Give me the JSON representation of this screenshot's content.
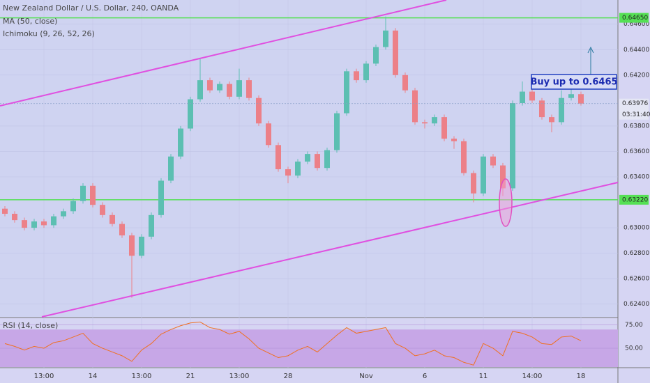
{
  "chart_data": {
    "type": "candlestick",
    "title": "New Zealand Dollar / U.S. Dollar, 240, OANDA",
    "indicators": [
      "MA (50, close)",
      "Ichimoku (9, 26, 52, 26)"
    ],
    "categories": [
      null,
      null,
      null,
      null,
      "13:00",
      null,
      null,
      null,
      null,
      "14",
      null,
      null,
      null,
      null,
      "13:00",
      null,
      null,
      null,
      null,
      "21",
      null,
      null,
      null,
      null,
      "13:00",
      null,
      null,
      null,
      null,
      "28",
      null,
      null,
      null,
      null,
      null,
      null,
      null,
      "Nov",
      null,
      null,
      null,
      null,
      null,
      "6",
      null,
      null,
      null,
      null,
      null,
      "11",
      null,
      null,
      null,
      null,
      "14:00",
      null,
      null,
      null,
      null,
      "18"
    ],
    "open": [
      0.6315,
      0.6311,
      0.6306,
      0.63,
      0.6305,
      0.6302,
      0.6309,
      0.6313,
      0.6321,
      0.6333,
      0.6318,
      0.631,
      0.6303,
      0.6294,
      0.6278,
      0.6293,
      0.631,
      0.6337,
      0.6356,
      0.6378,
      0.6401,
      0.6416,
      0.6408,
      0.6413,
      0.6403,
      0.6416,
      0.6402,
      0.6382,
      0.6365,
      0.6346,
      0.6341,
      0.6352,
      0.6358,
      0.6347,
      0.6361,
      0.639,
      0.6423,
      0.6416,
      0.6429,
      0.6442,
      0.6455,
      0.642,
      0.6408,
      0.6383,
      0.6382,
      0.6387,
      0.637,
      0.6368,
      0.6343,
      0.6327,
      0.6356,
      0.6349,
      0.6331,
      0.6398,
      0.6407,
      0.64,
      0.6387,
      0.6383,
      0.6402,
      0.6405
    ],
    "high": [
      0.6317,
      0.6313,
      0.6308,
      0.6307,
      0.6307,
      0.6311,
      0.6315,
      0.6323,
      0.6335,
      0.6335,
      0.632,
      0.6312,
      0.6305,
      0.6296,
      0.6295,
      0.6312,
      0.6339,
      0.6358,
      0.638,
      0.6403,
      0.6433,
      0.6418,
      0.6415,
      0.6415,
      0.6425,
      0.6418,
      0.6404,
      0.6384,
      0.6367,
      0.6348,
      0.6354,
      0.636,
      0.636,
      0.6363,
      0.6392,
      0.6425,
      0.6425,
      0.6431,
      0.6444,
      0.6466,
      0.6457,
      0.6422,
      0.641,
      0.6385,
      0.6389,
      0.6389,
      0.6372,
      0.637,
      0.6345,
      0.6358,
      0.6358,
      0.6351,
      0.64,
      0.6415,
      0.6409,
      0.6402,
      0.6389,
      0.6408,
      0.641,
      0.6407
    ],
    "low": [
      0.6309,
      0.6304,
      0.6298,
      0.6298,
      0.63,
      0.63,
      0.6307,
      0.6311,
      0.6319,
      0.6316,
      0.6308,
      0.6301,
      0.6292,
      0.6245,
      0.6276,
      0.6291,
      0.6308,
      0.6335,
      0.6354,
      0.6376,
      0.6399,
      0.6406,
      0.6406,
      0.6401,
      0.6401,
      0.64,
      0.638,
      0.6363,
      0.6344,
      0.6335,
      0.6339,
      0.635,
      0.6345,
      0.6345,
      0.6359,
      0.6388,
      0.6414,
      0.6414,
      0.6427,
      0.644,
      0.6418,
      0.6406,
      0.6381,
      0.6378,
      0.638,
      0.6368,
      0.6362,
      0.6341,
      0.632,
      0.6325,
      0.6347,
      0.6325,
      0.6329,
      0.6396,
      0.6398,
      0.6385,
      0.6375,
      0.6381,
      0.64,
      0.6396
    ],
    "close": [
      0.6311,
      0.6306,
      0.63,
      0.6305,
      0.6302,
      0.6309,
      0.6313,
      0.6321,
      0.6333,
      0.6318,
      0.631,
      0.6303,
      0.6294,
      0.6278,
      0.6293,
      0.631,
      0.6337,
      0.6356,
      0.6378,
      0.6401,
      0.6416,
      0.6408,
      0.6413,
      0.6403,
      0.6416,
      0.6402,
      0.6382,
      0.6365,
      0.6346,
      0.6341,
      0.6352,
      0.6358,
      0.6347,
      0.6361,
      0.639,
      0.6423,
      0.6416,
      0.6429,
      0.6442,
      0.6455,
      0.642,
      0.6408,
      0.6383,
      0.6382,
      0.6387,
      0.637,
      0.6368,
      0.6343,
      0.6327,
      0.6356,
      0.6349,
      0.6331,
      0.6398,
      0.6407,
      0.64,
      0.6387,
      0.6383,
      0.6402,
      0.6405,
      0.63976
    ],
    "up_color": "#5cbfb2",
    "down_color": "#ec8088",
    "ylim": [
      0.623,
      0.6479
    ],
    "yticks": [
      {
        "value": 0.624,
        "label": "0.62400"
      },
      {
        "value": 0.626,
        "label": "0.62600"
      },
      {
        "value": 0.628,
        "label": "0.62800"
      },
      {
        "value": 0.63,
        "label": "0.63000"
      },
      {
        "value": 0.634,
        "label": "0.63400"
      },
      {
        "value": 0.636,
        "label": "0.63600"
      },
      {
        "value": 0.638,
        "label": "0.63800"
      },
      {
        "value": 0.642,
        "label": "0.64200"
      },
      {
        "value": 0.644,
        "label": "0.64400"
      },
      {
        "value": 0.646,
        "label": "0.64600"
      }
    ],
    "grid": true,
    "levels": [
      {
        "value": 0.6465,
        "label": "0.64650",
        "color": "#55e055"
      },
      {
        "value": 0.6322,
        "label": "0.63220",
        "color": "#55e055"
      }
    ],
    "last_price": {
      "value": 0.63976,
      "label": "0.63976",
      "countdown": "03:31:40"
    },
    "annotation": "Buy up to 0.6465",
    "rsi": {
      "name": "RSI (14, close)",
      "color": "#f07020",
      "values": [
        55,
        52,
        48,
        52,
        50,
        56,
        58,
        62,
        66,
        55,
        50,
        46,
        42,
        36,
        48,
        55,
        65,
        70,
        74,
        77,
        78,
        72,
        70,
        65,
        68,
        60,
        50,
        45,
        40,
        42,
        48,
        52,
        46,
        55,
        64,
        72,
        66,
        68,
        70,
        72,
        55,
        50,
        42,
        44,
        48,
        42,
        40,
        35,
        32,
        55,
        50,
        42,
        68,
        66,
        62,
        55,
        54,
        62,
        63,
        58
      ],
      "ylim": [
        30,
        82
      ],
      "yticks": [
        {
          "value": 75,
          "label": "75.00"
        },
        {
          "value": 50,
          "label": "50.00"
        }
      ],
      "band": [
        30,
        70
      ]
    }
  }
}
